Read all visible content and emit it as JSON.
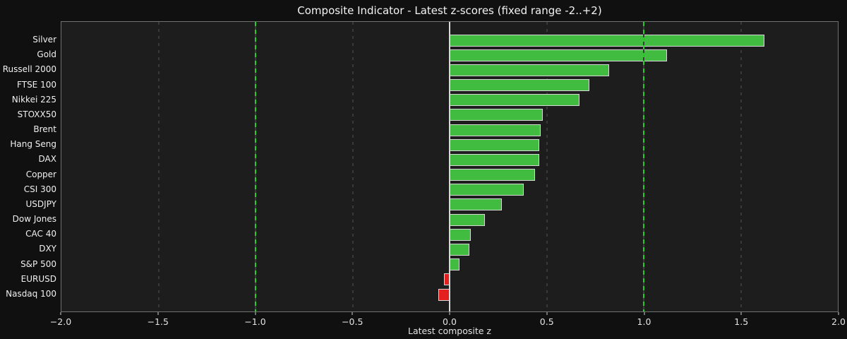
{
  "chart_data": {
    "type": "bar",
    "orientation": "horizontal",
    "title": "Composite Indicator - Latest z-scores (fixed range -2..+2)",
    "xlabel": "Latest composite z",
    "xlim": [
      -2.0,
      2.0
    ],
    "xticks": [
      -2.0,
      -1.5,
      -1.0,
      -0.5,
      0.0,
      0.5,
      1.0,
      1.5,
      2.0
    ],
    "xtick_labels": [
      "−2.0",
      "−1.5",
      "−1.0",
      "−0.5",
      "0.0",
      "0.5",
      "1.0",
      "1.5",
      "2.0"
    ],
    "categories": [
      "Silver",
      "Gold",
      "Russell 2000",
      "FTSE 100",
      "Nikkei 225",
      "STOXX50",
      "Brent",
      "Hang Seng",
      "DAX",
      "Copper",
      "CSI 300",
      "USDJPY",
      "Dow Jones",
      "CAC 40",
      "DXY",
      "S&P 500",
      "EURUSD",
      "Nasdaq 100"
    ],
    "values": [
      1.62,
      1.12,
      0.82,
      0.72,
      0.67,
      0.48,
      0.47,
      0.46,
      0.46,
      0.44,
      0.38,
      0.27,
      0.18,
      0.11,
      0.1,
      0.05,
      -0.03,
      -0.06
    ],
    "zero_line": 0.0,
    "threshold_lines": [
      -1.0,
      1.0
    ],
    "gridlines": [
      -1.5,
      -0.5,
      0.5,
      1.5
    ],
    "legend": null,
    "grid_on": true,
    "colors": {
      "positive_bar": "#41bc41",
      "negative_bar": "#e41f1f",
      "bar_edge": "#d6d6d6",
      "threshold_line": "#22cf22",
      "zero_line": "#d9d9d9",
      "gridline": "#555555",
      "plot_background": "#1d1d1d",
      "figure_background": "#101010",
      "text": "#f0f0f0"
    }
  }
}
